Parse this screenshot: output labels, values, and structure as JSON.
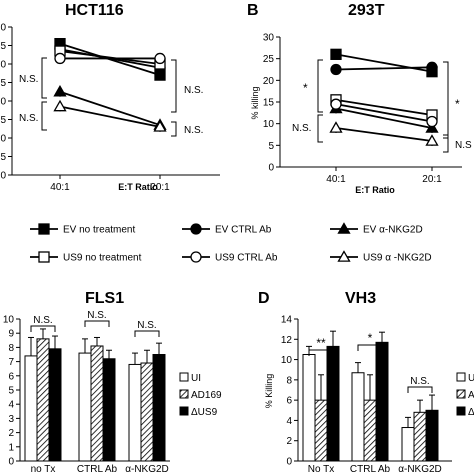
{
  "chart_data": [
    {
      "id": "A",
      "type": "line",
      "title": "HCT116",
      "xlabel": "E:T Ratio",
      "ylabel": "",
      "categories": [
        "40:1",
        "20:1"
      ],
      "ylim": [
        0,
        40
      ],
      "yticks": [
        "0",
        "5",
        "0",
        "5",
        "0",
        "5",
        "0",
        "5",
        "0"
      ],
      "series": [
        {
          "name": "EV no treatment",
          "marker": "square-filled",
          "values": [
            35.5,
            27.0
          ]
        },
        {
          "name": "EV CTRL Ab",
          "marker": "circle-filled",
          "values": [
            34.0,
            29.0
          ]
        },
        {
          "name": "EV α-NKG2D",
          "marker": "triangle-filled",
          "values": [
            22.5,
            13.5
          ]
        },
        {
          "name": "US9 no treatment",
          "marker": "square-open",
          "values": [
            33.5,
            30.0
          ]
        },
        {
          "name": "US9 CTRL Ab",
          "marker": "circle-open",
          "values": [
            31.5,
            31.5
          ]
        },
        {
          "name": "US9 α -NKG2D",
          "marker": "triangle-open",
          "values": [
            18.5,
            13.0
          ]
        }
      ],
      "annotations": [
        "N.S.",
        "N.S.",
        "N.S.",
        "N.S."
      ]
    },
    {
      "id": "B",
      "panel_label": "B",
      "type": "line",
      "title": "293T",
      "xlabel": "E:T Ratio",
      "ylabel": "% killing",
      "categories": [
        "40:1",
        "20:1"
      ],
      "ylim": [
        0,
        30
      ],
      "yticks": [
        "0",
        "5",
        "10",
        "15",
        "20",
        "25",
        "30"
      ],
      "series": [
        {
          "name": "EV no treatment",
          "marker": "square-filled",
          "values": [
            26.0,
            22.0
          ]
        },
        {
          "name": "EV CTRL Ab",
          "marker": "circle-filled",
          "values": [
            22.5,
            23.0
          ]
        },
        {
          "name": "EV α-NKG2D",
          "marker": "triangle-filled",
          "values": [
            13.5,
            9.0
          ]
        },
        {
          "name": "US9 no treatment",
          "marker": "square-open",
          "values": [
            15.5,
            12.0
          ]
        },
        {
          "name": "US9 CTRL Ab",
          "marker": "circle-open",
          "values": [
            14.5,
            10.5
          ]
        },
        {
          "name": "US9 α -NKG2D",
          "marker": "triangle-open",
          "values": [
            9.0,
            6.0
          ]
        }
      ],
      "annotations": [
        "*",
        "*",
        "N.S.",
        "N.S"
      ]
    },
    {
      "id": "C",
      "type": "bar",
      "title": "FLS1",
      "ylabel": "",
      "categories": [
        "no Tx",
        "CTRL Ab",
        "α-NKG2D"
      ],
      "ylim": [
        0,
        10
      ],
      "yticks": [
        "0",
        "1",
        "2",
        "3",
        "4",
        "5",
        "6",
        "7",
        "8",
        "9",
        "10"
      ],
      "series": [
        {
          "name": "UI",
          "pattern": "open",
          "values": [
            7.4,
            7.6,
            6.8
          ],
          "errors": [
            1.3,
            1.0,
            0.8
          ]
        },
        {
          "name": "AD169",
          "pattern": "hatch",
          "values": [
            8.6,
            8.1,
            6.9
          ],
          "errors": [
            0.7,
            0.6,
            0.9
          ]
        },
        {
          "name": "ΔUS9",
          "pattern": "filled",
          "values": [
            7.9,
            7.2,
            7.5
          ],
          "errors": [
            0.9,
            0.6,
            0.8
          ]
        }
      ],
      "annotations": [
        "N.S.",
        "N.S.",
        "N.S."
      ]
    },
    {
      "id": "D",
      "panel_label": "D",
      "type": "bar",
      "title": "VH3",
      "ylabel": "% Killing",
      "categories": [
        "No Tx",
        "CTRL Ab",
        "α-NKG2D"
      ],
      "ylim": [
        0,
        14
      ],
      "yticks": [
        "0",
        "2",
        "4",
        "6",
        "8",
        "10",
        "12",
        "14"
      ],
      "series": [
        {
          "name": "U",
          "pattern": "open",
          "values": [
            10.5,
            8.7,
            3.3
          ],
          "errors": [
            0.8,
            1.0,
            1.0
          ]
        },
        {
          "name": "A",
          "pattern": "hatch",
          "values": [
            6.0,
            6.0,
            4.8
          ],
          "errors": [
            2.5,
            2.5,
            1.2
          ]
        },
        {
          "name": "Δ",
          "pattern": "filled",
          "values": [
            11.3,
            11.7,
            5.0
          ],
          "errors": [
            1.5,
            1.0,
            1.5
          ]
        }
      ],
      "annotations": [
        "**",
        "*",
        "N.S."
      ]
    }
  ],
  "legend": [
    {
      "label": "EV no treatment",
      "marker": "square-filled"
    },
    {
      "label": "EV CTRL  Ab",
      "marker": "circle-filled"
    },
    {
      "label": "EV α-NKG2D",
      "marker": "triangle-filled"
    },
    {
      "label": "US9 no treatment",
      "marker": "square-open"
    },
    {
      "label": "US9 CTRL  Ab",
      "marker": "circle-open"
    },
    {
      "label": "US9 α -NKG2D",
      "marker": "triangle-open"
    }
  ],
  "colors": {
    "ink": "#000000",
    "background": "#ffffff"
  }
}
